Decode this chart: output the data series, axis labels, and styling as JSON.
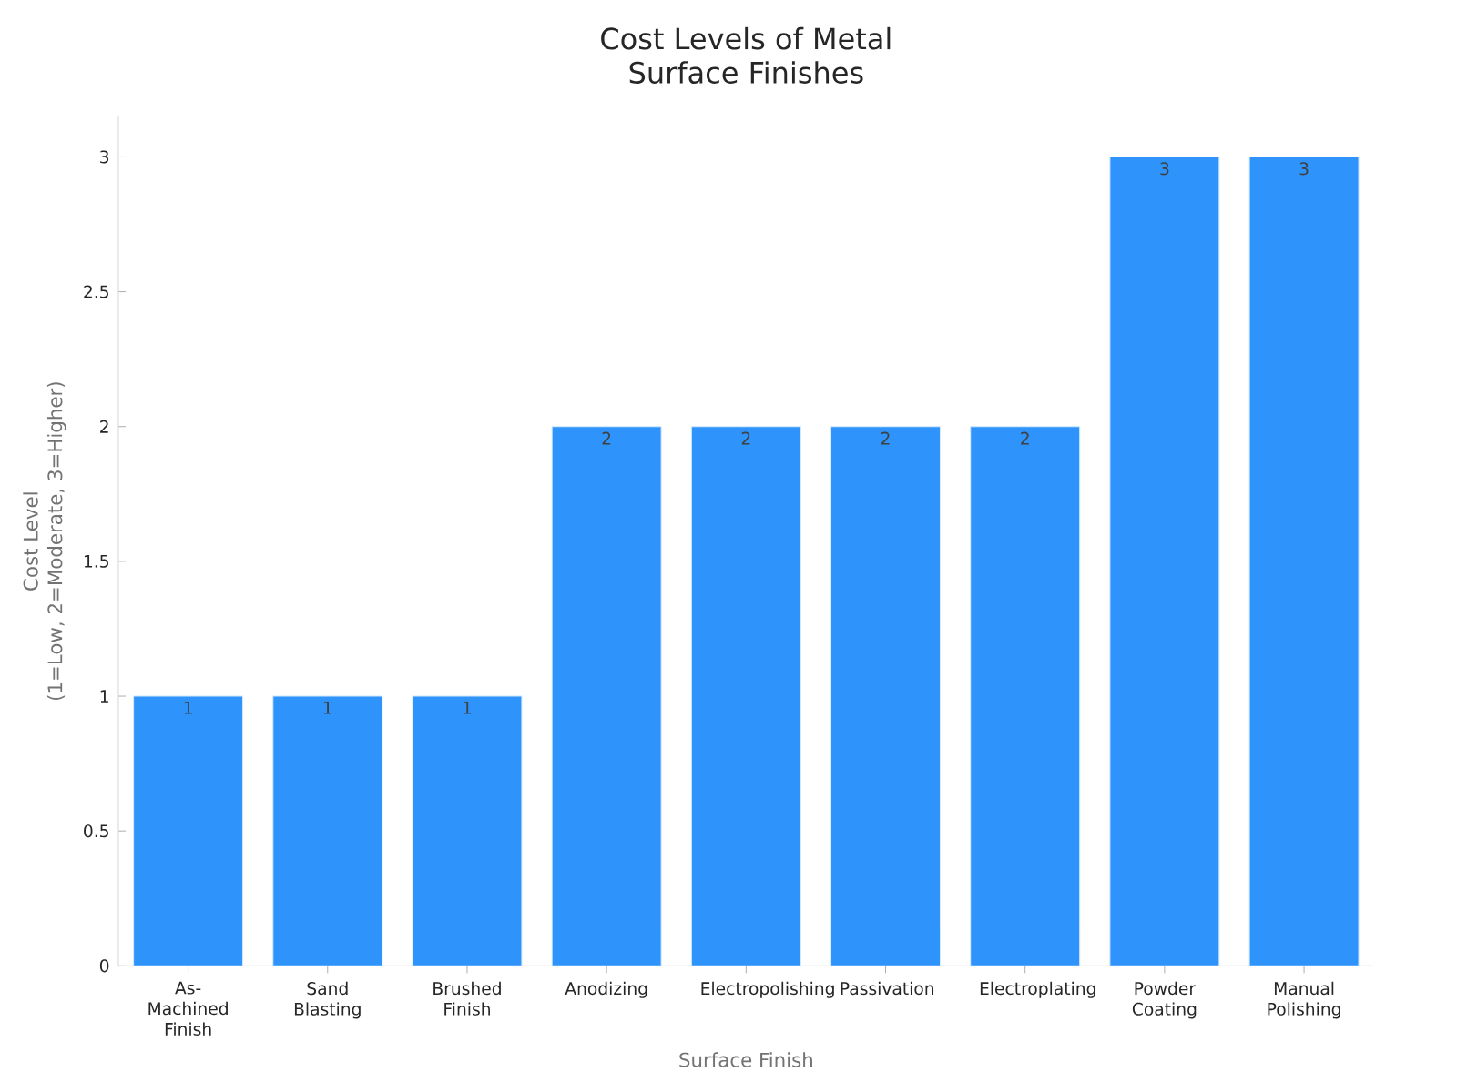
{
  "chart_data": {
    "type": "bar",
    "title": "Cost Levels of Metal\nSurface Finishes",
    "xlabel": "Surface Finish",
    "ylabel": "Cost Level\n(1=Low, 2=Moderate, 3=Higher)",
    "categories": [
      "As-Machined Finish",
      "Sand Blasting",
      "Brushed Finish",
      "Anodizing",
      "Electropolishing",
      "Passivation",
      "Electroplating",
      "Powder Coating",
      "Manual Polishing"
    ],
    "values": [
      1,
      1,
      1,
      2,
      2,
      2,
      2,
      3,
      3
    ],
    "color": "#2e93fa",
    "data_labels": true,
    "ylim": [
      0,
      3.15
    ],
    "yticks": [
      0,
      0.5,
      1,
      1.5,
      2,
      2.5,
      3
    ],
    "grid": false
  }
}
